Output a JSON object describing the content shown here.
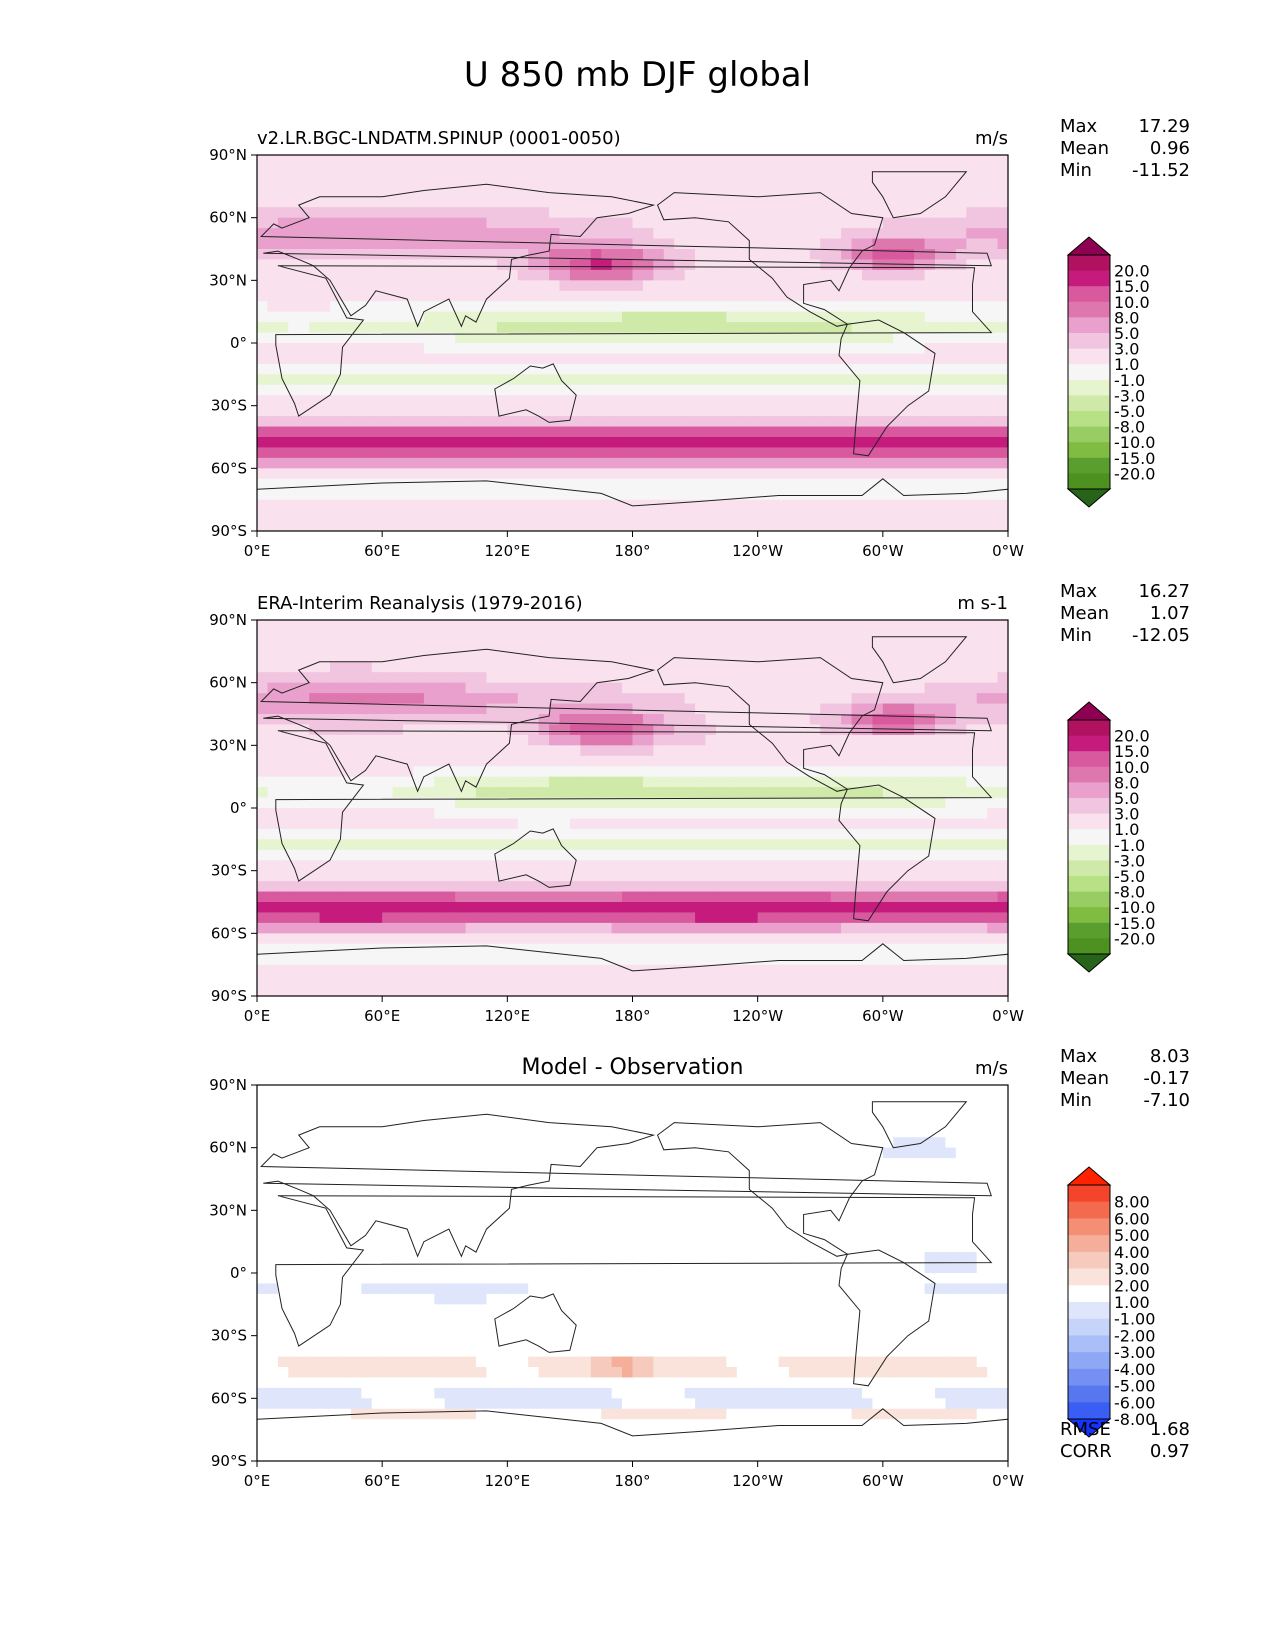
{
  "title": "U 850 mb DJF global",
  "xticks": [
    "0°E",
    "60°E",
    "120°E",
    "180°",
    "120°W",
    "60°W",
    "0°W"
  ],
  "yticks": [
    "90°N",
    "60°N",
    "30°N",
    "0°",
    "30°S",
    "60°S",
    "90°S"
  ],
  "panels": [
    {
      "id": "model",
      "left_title": "v2.LR.BGC-LNDATM.SPINUP (0001-0050)",
      "center_title": "",
      "units": "m/s",
      "stats": [
        {
          "label": "Max",
          "value": "17.29"
        },
        {
          "label": "Mean",
          "value": "0.96"
        },
        {
          "label": "Min",
          "value": "-11.52"
        }
      ],
      "extra_stats": [],
      "colorbar": {
        "labels": [
          "20.0",
          "15.0",
          "10.0",
          "8.0",
          "5.0",
          "3.0",
          "1.0",
          "-1.0",
          "-3.0",
          "-5.0",
          "-8.0",
          "-10.0",
          "-15.0",
          "-20.0"
        ],
        "colors": [
          "#8e0152",
          "#b0125f",
          "#c51b7d",
          "#d9599f",
          "#de77ae",
          "#eaa0cc",
          "#f1c4df",
          "#f9e2ee",
          "#f6f6f6",
          "#e6f4d0",
          "#cfe9a8",
          "#b8e186",
          "#98cd63",
          "#7fbc41",
          "#5a9e2f",
          "#4d9221",
          "#276419"
        ]
      }
    },
    {
      "id": "obs",
      "left_title": "ERA-Interim Reanalysis (1979-2016)",
      "center_title": "",
      "units": "m s-1",
      "stats": [
        {
          "label": "Max",
          "value": "16.27"
        },
        {
          "label": "Mean",
          "value": "1.07"
        },
        {
          "label": "Min",
          "value": "-12.05"
        }
      ],
      "extra_stats": [],
      "colorbar": {
        "labels": [
          "20.0",
          "15.0",
          "10.0",
          "8.0",
          "5.0",
          "3.0",
          "1.0",
          "-1.0",
          "-3.0",
          "-5.0",
          "-8.0",
          "-10.0",
          "-15.0",
          "-20.0"
        ],
        "colors": [
          "#8e0152",
          "#b0125f",
          "#c51b7d",
          "#d9599f",
          "#de77ae",
          "#eaa0cc",
          "#f1c4df",
          "#f9e2ee",
          "#f6f6f6",
          "#e6f4d0",
          "#cfe9a8",
          "#b8e186",
          "#98cd63",
          "#7fbc41",
          "#5a9e2f",
          "#4d9221",
          "#276419"
        ]
      }
    },
    {
      "id": "diff",
      "left_title": "",
      "center_title": "Model - Observation",
      "units": "m/s",
      "stats": [
        {
          "label": "Max",
          "value": "8.03"
        },
        {
          "label": "Mean",
          "value": "-0.17"
        },
        {
          "label": "Min",
          "value": "-7.10"
        }
      ],
      "extra_stats": [
        {
          "label": "RMSE",
          "value": "1.68"
        },
        {
          "label": "CORR",
          "value": "0.97"
        }
      ],
      "colorbar": {
        "labels": [
          "8.00",
          "6.00",
          "5.00",
          "4.00",
          "3.00",
          "2.00",
          "1.00",
          "-1.00",
          "-2.00",
          "-3.00",
          "-4.00",
          "-5.00",
          "-6.00",
          "-8.00"
        ],
        "colors": [
          "#ff2200",
          "#f4452b",
          "#f46a4f",
          "#f48e75",
          "#f4ae9a",
          "#f6cbbd",
          "#f9e3da",
          "#ffffff",
          "#dfe6fb",
          "#c6d4fa",
          "#aabefa",
          "#8fa8f6",
          "#7490f2",
          "#5777f0",
          "#3a5ef3",
          "#1533ff"
        ]
      }
    }
  ],
  "colors": {
    "land_outline": "#222222",
    "frame": "#000000"
  }
}
